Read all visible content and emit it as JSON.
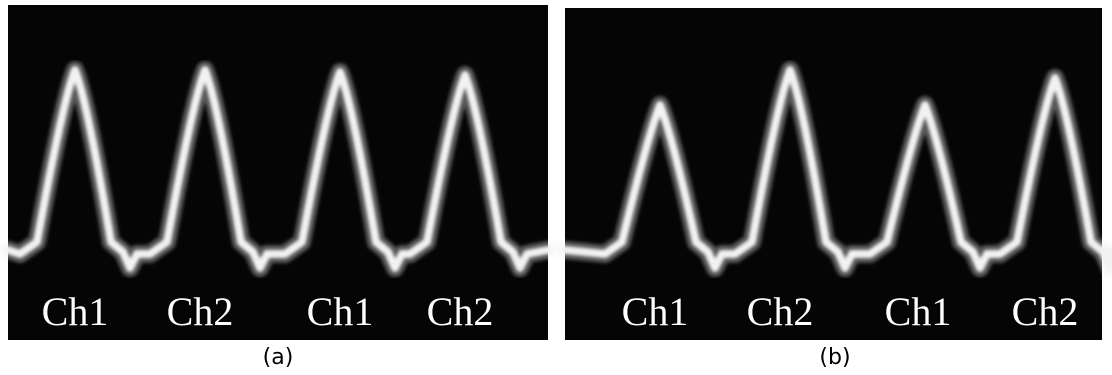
{
  "panels": [
    {
      "caption": "(a)",
      "labels": [
        "Ch1",
        "Ch2",
        "Ch1",
        "Ch2"
      ]
    },
    {
      "caption": "(b)",
      "labels": [
        "Ch1",
        "Ch2",
        "Ch1",
        "Ch2"
      ]
    }
  ]
}
